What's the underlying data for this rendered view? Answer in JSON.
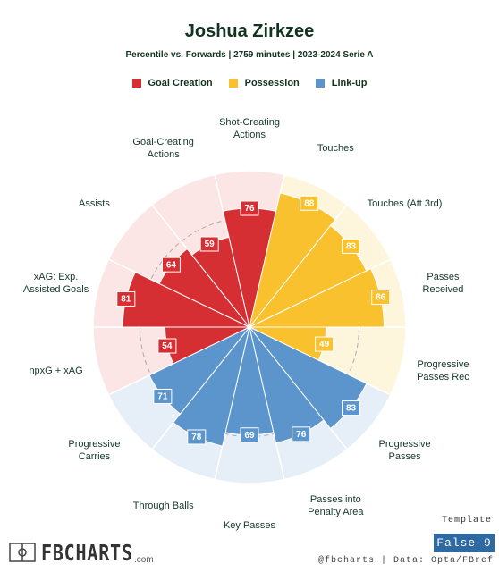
{
  "chart_data": {
    "type": "pizza",
    "title": "Joshua Zirkzee",
    "subtitle": "Percentile vs. Forwards | 2759 minutes | 2023-2024 Serie A",
    "rlim": [
      0,
      100
    ],
    "series": [
      {
        "name": "Goal Creation",
        "color": "#d62f33",
        "background": "#fbe5e5",
        "categories": [
          "npxG + xAG",
          "xAG: Exp. Assisted Goals",
          "Assists",
          "Goal-Creating Actions",
          "Shot-Creating Actions"
        ],
        "values": [
          54,
          81,
          64,
          59,
          76
        ]
      },
      {
        "name": "Possession",
        "color": "#f9c12e",
        "background": "#fdf6dd",
        "categories": [
          "Touches",
          "Touches (Att 3rd)",
          "Passes Received",
          "Progressive Passes Rec"
        ],
        "values": [
          88,
          83,
          86,
          49
        ]
      },
      {
        "name": "Link-up",
        "color": "#5b95cc",
        "background": "#e6eef8",
        "categories": [
          "Progressive Passes",
          "Passes into Penalty Area",
          "Key Passes",
          "Through Balls",
          "Progressive Carries"
        ],
        "values": [
          83,
          76,
          69,
          78,
          71
        ]
      }
    ]
  },
  "branding": {
    "logo": "FBCHARTS",
    "logo_suffix": ".com",
    "credit": "@fbcharts | Data: Opta/FBref",
    "template_label": "Template",
    "template": "False 9"
  }
}
